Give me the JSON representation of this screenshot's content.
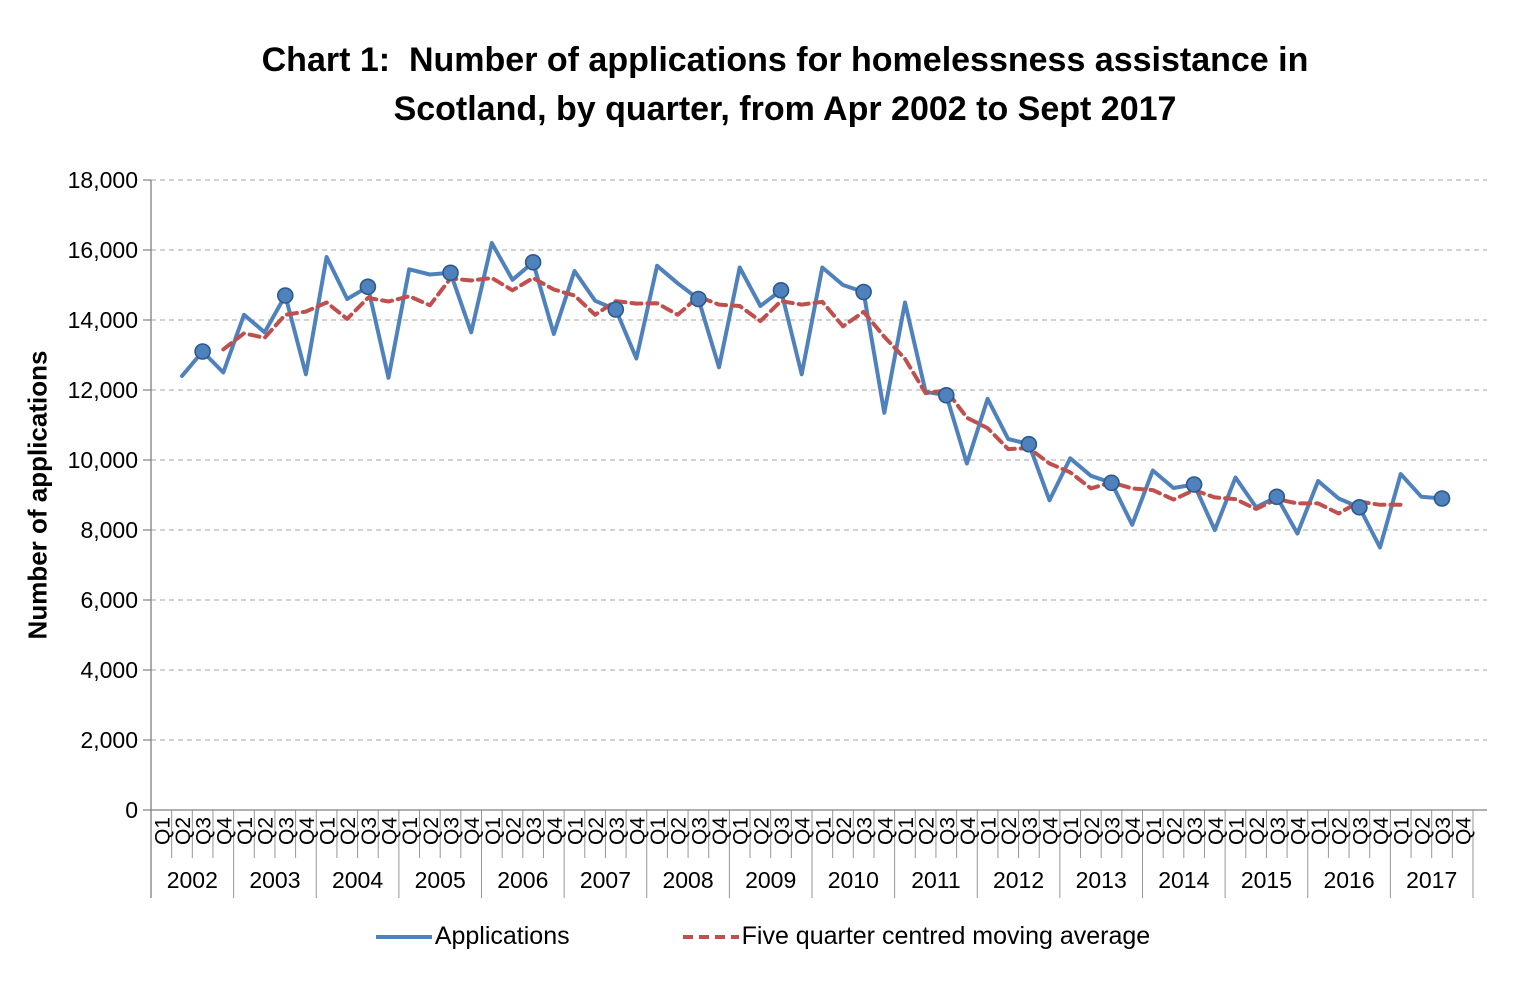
{
  "title_lines": [
    "Chart 1:  Number of applications for homelessness assistance in",
    "Scotland, by quarter, from Apr 2002 to Sept 2017"
  ],
  "y_axis": {
    "title": "Number of applications",
    "ticks": [
      0,
      2000,
      4000,
      6000,
      8000,
      10000,
      12000,
      14000,
      16000,
      18000
    ],
    "tick_labels": [
      "0",
      "2,000",
      "4,000",
      "6,000",
      "8,000",
      "10,000",
      "12,000",
      "14,000",
      "16,000",
      "18,000"
    ]
  },
  "chart_data": {
    "type": "line",
    "title": "Chart 1:  Number of applications for homelessness assistance in Scotland, by quarter, from Apr 2002 to Sept 2017",
    "ylabel": "Number of applications",
    "ylim": [
      0,
      18000
    ],
    "ytick_step": 2000,
    "grid": "horizontal-dashed",
    "legend_position": "bottom",
    "x_slot_count": 64,
    "x_years": [
      "2002",
      "2003",
      "2004",
      "2005",
      "2006",
      "2007",
      "2008",
      "2009",
      "2010",
      "2011",
      "2012",
      "2013",
      "2014",
      "2015",
      "2016",
      "2017"
    ],
    "quarter_labels": [
      "Q1",
      "Q2",
      "Q3",
      "Q4"
    ],
    "series": [
      {
        "name": "Applications",
        "color": "#4F81BD",
        "marker_border_color": "#2A5A8C",
        "dash": null,
        "start_slot": 1,
        "start_quarter": "2002 Q2",
        "end_quarter": "2017 Q3",
        "markers_on_slot_mod4": 2,
        "markers_on_quarter": "Q3",
        "values": [
          12400,
          13100,
          12500,
          14150,
          13650,
          14700,
          12450,
          15800,
          14600,
          14950,
          12350,
          15450,
          15300,
          15350,
          13650,
          16200,
          15150,
          15650,
          13600,
          15400,
          14550,
          14300,
          12900,
          15550,
          15050,
          14600,
          12650,
          15500,
          14400,
          14850,
          12450,
          15500,
          15000,
          14800,
          11350,
          14500,
          11950,
          11850,
          9900,
          11750,
          10600,
          10450,
          8850,
          10050,
          9550,
          9350,
          8150,
          9700,
          9200,
          9300,
          8000,
          9500,
          8650,
          8950,
          7900,
          9400,
          8900,
          8650,
          7500,
          9600,
          8950,
          8900
        ]
      },
      {
        "name": "Five quarter centred moving average",
        "color": "#C0504D",
        "dash": [
          10,
          6
        ],
        "start_slot": 3,
        "start_quarter": "2002 Q4",
        "end_quarter": "2017 Q1",
        "values": [
          13160,
          13620,
          13490,
          14150,
          14240,
          14500,
          14030,
          14630,
          14530,
          14680,
          14420,
          15190,
          15130,
          15200,
          14850,
          15200,
          14870,
          14700,
          14150,
          14540,
          14470,
          14480,
          14150,
          14670,
          14440,
          14400,
          13970,
          14540,
          14440,
          14520,
          13820,
          14230,
          13520,
          12890,
          11910,
          11990,
          11210,
          10910,
          10310,
          10340,
          9900,
          9650,
          9190,
          9360,
          9190,
          9140,
          8870,
          9140,
          8930,
          8880,
          8600,
          8880,
          8760,
          8760,
          8470,
          8810,
          8720,
          8720
        ]
      }
    ]
  }
}
